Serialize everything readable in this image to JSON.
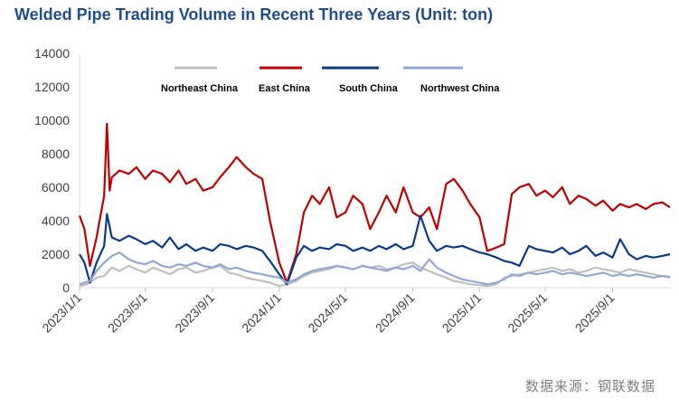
{
  "chart_data": {
    "type": "line",
    "title": "Welded Pipe Trading Volume in Recent Three Years (Unit: ton)",
    "source": "数据来源：钢联数据",
    "ylim": [
      0,
      14000
    ],
    "y_ticks": [
      "0",
      "2000",
      "4000",
      "6000",
      "8000",
      "10000",
      "12000",
      "14000"
    ],
    "x_ticks": [
      "2023/1/1",
      "2023/5/1",
      "2023/9/1",
      "2024/1/1",
      "2024/5/1",
      "2024/9/1",
      "2025/1/1",
      "2025/5/1",
      "2025/9/1"
    ],
    "x_range": [
      "2023/1/1",
      "2025/12/15"
    ],
    "grid": false,
    "legend_position": "top",
    "series": [
      {
        "name": "Northeast China",
        "color": "#bfbfbf",
        "x": [
          "2023/1/1",
          "2023/1/10",
          "2023/1/20",
          "2023/2/1",
          "2023/2/15",
          "2023/3/1",
          "2023/3/15",
          "2023/4/1",
          "2023/4/15",
          "2023/5/1",
          "2023/5/15",
          "2023/6/1",
          "2023/6/15",
          "2023/7/1",
          "2023/7/15",
          "2023/8/1",
          "2023/8/15",
          "2023/9/1",
          "2023/9/15",
          "2023/10/1",
          "2023/10/15",
          "2023/11/1",
          "2023/11/15",
          "2023/12/1",
          "2023/12/15",
          "2024/1/1",
          "2024/1/15",
          "2024/2/1",
          "2024/2/15",
          "2024/3/1",
          "2024/3/15",
          "2024/4/1",
          "2024/4/15",
          "2024/5/1",
          "2024/5/15",
          "2024/6/1",
          "2024/6/15",
          "2024/7/1",
          "2024/7/15",
          "2024/8/1",
          "2024/8/15",
          "2024/9/1",
          "2024/9/15",
          "2024/10/1",
          "2024/10/15",
          "2024/11/1",
          "2024/11/15",
          "2024/12/1",
          "2024/12/15",
          "2025/1/1",
          "2025/1/15",
          "2025/2/1",
          "2025/2/15",
          "2025/3/1",
          "2025/3/15",
          "2025/4/1",
          "2025/4/15",
          "2025/5/1",
          "2025/5/15",
          "2025/6/1",
          "2025/6/15",
          "2025/7/1",
          "2025/7/15",
          "2025/8/1",
          "2025/8/15",
          "2025/9/1",
          "2025/9/15",
          "2025/10/1",
          "2025/10/15",
          "2025/11/1",
          "2025/11/15",
          "2025/12/1",
          "2025/12/15"
        ],
        "values": [
          100,
          150,
          300,
          600,
          700,
          1200,
          1000,
          1300,
          1100,
          900,
          1200,
          1000,
          800,
          1100,
          1200,
          900,
          1000,
          1200,
          1300,
          900,
          800,
          600,
          500,
          400,
          300,
          100,
          200,
          400,
          700,
          900,
          1000,
          1100,
          1300,
          1200,
          1100,
          1300,
          1200,
          1300,
          1100,
          1200,
          1400,
          1500,
          1200,
          1000,
          800,
          600,
          400,
          300,
          200,
          150,
          100,
          200,
          600,
          700,
          800,
          900,
          1000,
          1100,
          1200,
          1000,
          1100,
          900,
          1000,
          1200,
          1100,
          1000,
          900,
          1100,
          1000,
          900,
          800,
          700,
          600
        ]
      },
      {
        "name": "East China",
        "color": "#c00000",
        "x": [
          "2023/1/1",
          "2023/1/10",
          "2023/1/20",
          "2023/2/1",
          "2023/2/15",
          "2023/2/20",
          "2023/2/25",
          "2023/3/1",
          "2023/3/15",
          "2023/4/1",
          "2023/4/15",
          "2023/5/1",
          "2023/5/15",
          "2023/6/1",
          "2023/6/15",
          "2023/7/1",
          "2023/7/15",
          "2023/8/1",
          "2023/8/15",
          "2023/9/1",
          "2023/9/15",
          "2023/10/1",
          "2023/10/15",
          "2023/11/1",
          "2023/11/15",
          "2023/12/1",
          "2023/12/15",
          "2024/1/1",
          "2024/1/15",
          "2024/2/1",
          "2024/2/15",
          "2024/3/1",
          "2024/3/15",
          "2024/4/1",
          "2024/4/15",
          "2024/5/1",
          "2024/5/15",
          "2024/6/1",
          "2024/6/15",
          "2024/7/1",
          "2024/7/15",
          "2024/8/1",
          "2024/8/15",
          "2024/9/1",
          "2024/9/15",
          "2024/10/1",
          "2024/10/15",
          "2024/11/1",
          "2024/11/15",
          "2024/12/1",
          "2024/12/15",
          "2025/1/1",
          "2025/1/15",
          "2025/2/1",
          "2025/2/15",
          "2025/3/1",
          "2025/3/15",
          "2025/4/1",
          "2025/4/15",
          "2025/5/1",
          "2025/5/15",
          "2025/6/1",
          "2025/6/15",
          "2025/7/1",
          "2025/7/15",
          "2025/8/1",
          "2025/8/15",
          "2025/9/1",
          "2025/9/15",
          "2025/10/1",
          "2025/10/15",
          "2025/11/1",
          "2025/11/15",
          "2025/12/1",
          "2025/12/15"
        ],
        "values": [
          4300,
          3500,
          1300,
          3000,
          5500,
          9800,
          5800,
          6600,
          7000,
          6800,
          7200,
          6500,
          7000,
          6800,
          6300,
          7000,
          6200,
          6500,
          5800,
          6000,
          6600,
          7200,
          7800,
          7200,
          6800,
          6500,
          4000,
          1500,
          300,
          2000,
          4500,
          5500,
          5000,
          6000,
          4200,
          4500,
          5500,
          5000,
          3500,
          4500,
          5500,
          4500,
          6000,
          4500,
          4200,
          4800,
          3500,
          6200,
          6500,
          5800,
          5000,
          4200,
          2200,
          2400,
          2600,
          5600,
          6000,
          6200,
          5500,
          5800,
          5400,
          6000,
          5000,
          5500,
          5300,
          4900,
          5200,
          4600,
          5000,
          4800,
          5000,
          4700,
          5000,
          5100,
          4800
        ]
      },
      {
        "name": "South China",
        "color": "#0b3a8c",
        "x": [
          "2023/1/1",
          "2023/1/10",
          "2023/1/20",
          "2023/2/1",
          "2023/2/15",
          "2023/2/20",
          "2023/3/1",
          "2023/3/15",
          "2023/4/1",
          "2023/4/15",
          "2023/5/1",
          "2023/5/15",
          "2023/6/1",
          "2023/6/15",
          "2023/7/1",
          "2023/7/15",
          "2023/8/1",
          "2023/8/15",
          "2023/9/1",
          "2023/9/15",
          "2023/10/1",
          "2023/10/15",
          "2023/11/1",
          "2023/11/15",
          "2023/12/1",
          "2023/12/15",
          "2024/1/1",
          "2024/1/15",
          "2024/2/1",
          "2024/2/15",
          "2024/3/1",
          "2024/3/15",
          "2024/4/1",
          "2024/4/15",
          "2024/5/1",
          "2024/5/15",
          "2024/6/1",
          "2024/6/15",
          "2024/7/1",
          "2024/7/15",
          "2024/8/1",
          "2024/8/15",
          "2024/9/1",
          "2024/9/15",
          "2024/10/1",
          "2024/10/15",
          "2024/11/1",
          "2024/11/15",
          "2024/12/1",
          "2024/12/15",
          "2025/1/1",
          "2025/1/15",
          "2025/2/1",
          "2025/2/15",
          "2025/3/1",
          "2025/3/15",
          "2025/4/1",
          "2025/4/15",
          "2025/5/1",
          "2025/5/15",
          "2025/6/1",
          "2025/6/15",
          "2025/7/1",
          "2025/7/15",
          "2025/8/1",
          "2025/8/15",
          "2025/9/1",
          "2025/9/15",
          "2025/10/1",
          "2025/10/15",
          "2025/11/1",
          "2025/11/15",
          "2025/12/1",
          "2025/12/15"
        ],
        "values": [
          2000,
          1500,
          300,
          1500,
          2500,
          4400,
          3000,
          2800,
          3100,
          2900,
          2600,
          2800,
          2400,
          3000,
          2300,
          2600,
          2200,
          2400,
          2200,
          2600,
          2500,
          2300,
          2500,
          2400,
          2200,
          1600,
          800,
          200,
          1800,
          2500,
          2200,
          2400,
          2300,
          2600,
          2500,
          2200,
          2400,
          2200,
          2500,
          2300,
          2600,
          2300,
          2500,
          4300,
          2800,
          2200,
          2500,
          2400,
          2500,
          2300,
          2100,
          2000,
          1800,
          1600,
          1500,
          1300,
          2500,
          2300,
          2200,
          2100,
          2400,
          2000,
          2200,
          2500,
          1900,
          2100,
          1800,
          2900,
          2000,
          1700,
          1900,
          1800,
          1900,
          2000
        ]
      },
      {
        "name": "Northwest China",
        "color": "#8fa8d6",
        "x": [
          "2023/1/1",
          "2023/1/10",
          "2023/1/20",
          "2023/2/1",
          "2023/2/15",
          "2023/3/1",
          "2023/3/15",
          "2023/4/1",
          "2023/4/15",
          "2023/5/1",
          "2023/5/15",
          "2023/6/1",
          "2023/6/15",
          "2023/7/1",
          "2023/7/15",
          "2023/8/1",
          "2023/8/15",
          "2023/9/1",
          "2023/9/15",
          "2023/10/1",
          "2023/10/15",
          "2023/11/1",
          "2023/11/15",
          "2023/12/1",
          "2023/12/15",
          "2024/1/1",
          "2024/1/15",
          "2024/2/1",
          "2024/2/15",
          "2024/3/1",
          "2024/3/15",
          "2024/4/1",
          "2024/4/15",
          "2024/5/1",
          "2024/5/15",
          "2024/6/1",
          "2024/6/15",
          "2024/7/1",
          "2024/7/15",
          "2024/8/1",
          "2024/8/15",
          "2024/9/1",
          "2024/9/15",
          "2024/10/1",
          "2024/10/15",
          "2024/11/1",
          "2024/11/15",
          "2024/12/1",
          "2024/12/15",
          "2025/1/1",
          "2025/1/15",
          "2025/2/1",
          "2025/2/15",
          "2025/3/1",
          "2025/3/15",
          "2025/4/1",
          "2025/4/15",
          "2025/5/1",
          "2025/5/15",
          "2025/6/1",
          "2025/6/15",
          "2025/7/1",
          "2025/7/15",
          "2025/8/1",
          "2025/8/15",
          "2025/9/1",
          "2025/9/15",
          "2025/10/1",
          "2025/10/15",
          "2025/11/1",
          "2025/11/15",
          "2025/12/1",
          "2025/12/15"
        ],
        "values": [
          200,
          300,
          400,
          1000,
          1500,
          1900,
          2100,
          1700,
          1500,
          1400,
          1600,
          1300,
          1200,
          1400,
          1300,
          1500,
          1300,
          1200,
          1400,
          1100,
          1200,
          1000,
          900,
          800,
          700,
          600,
          300,
          500,
          800,
          1000,
          1100,
          1200,
          1300,
          1200,
          1100,
          1300,
          1200,
          1100,
          1000,
          1200,
          1100,
          1300,
          1000,
          1700,
          1200,
          900,
          700,
          500,
          400,
          300,
          200,
          300,
          500,
          800,
          700,
          900,
          800,
          900,
          1000,
          800,
          900,
          800,
          700,
          800,
          900,
          700,
          800,
          700,
          800,
          700,
          600,
          700,
          650
        ]
      }
    ]
  }
}
